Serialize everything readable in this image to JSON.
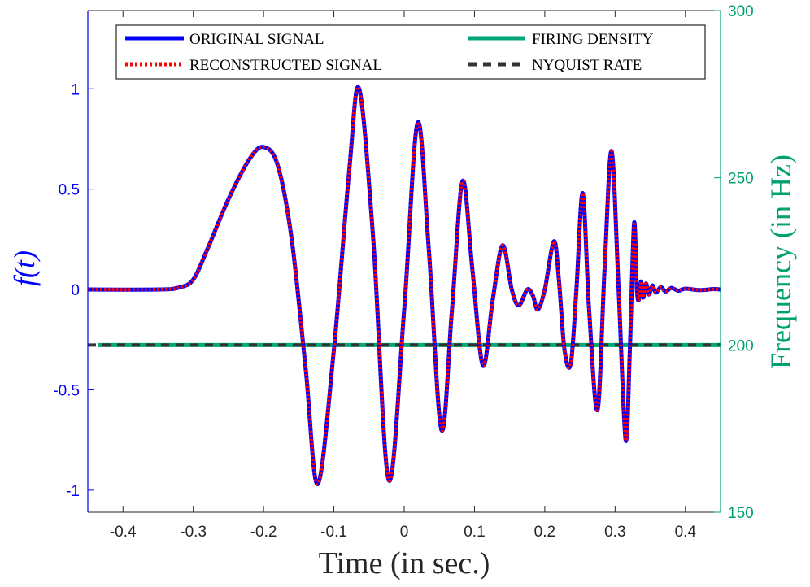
{
  "chart_data": {
    "type": "line",
    "xlabel": "Time (in sec.)",
    "ylabel_left": "f(t)",
    "ylabel_right": "Frequency (in Hz)",
    "xlim": [
      -0.45,
      0.45
    ],
    "ylim_left": [
      -1.11,
      1.39
    ],
    "ylim_right": [
      150,
      300
    ],
    "x_ticks": [
      -0.4,
      -0.3,
      -0.2,
      -0.1,
      0,
      0.1,
      0.2,
      0.3,
      0.4
    ],
    "x_tick_labels": [
      "-0.4",
      "-0.3",
      "-0.2",
      "-0.1",
      "0",
      "0.1",
      "0.2",
      "0.3",
      "0.4"
    ],
    "y_left_ticks": [
      -1,
      -0.5,
      0,
      0.5,
      1
    ],
    "y_left_tick_labels": [
      "-1",
      "-0.5",
      "0",
      "0.5",
      "1"
    ],
    "y_right_ticks": [
      150,
      200,
      250,
      300
    ],
    "y_right_tick_labels": [
      "150",
      "200",
      "250",
      "300"
    ],
    "grid": false,
    "legend_position": "top",
    "colors": {
      "left_axis": "#0000ff",
      "right_axis": "#00a070",
      "original": "#0000ff",
      "reconstructed": "#ff0000",
      "firing": "#00a878",
      "nyquist": "#333333"
    },
    "series": [
      {
        "name": "ORIGINAL SIGNAL",
        "axis": "left",
        "style": "solid",
        "x": [
          -0.45,
          -0.35,
          -0.32,
          -0.3,
          -0.28,
          -0.25,
          -0.22,
          -0.2,
          -0.18,
          -0.16,
          -0.14,
          -0.123,
          -0.1,
          -0.078,
          -0.064,
          -0.044,
          -0.022,
          0.0,
          0.019,
          0.035,
          0.053,
          0.068,
          0.083,
          0.097,
          0.112,
          0.126,
          0.14,
          0.153,
          0.163,
          0.175,
          0.183,
          0.19,
          0.2,
          0.213,
          0.22,
          0.228,
          0.237,
          0.245,
          0.254,
          0.263,
          0.275,
          0.285,
          0.295,
          0.305,
          0.315,
          0.321,
          0.327,
          0.331,
          0.334,
          0.337,
          0.34,
          0.344,
          0.348,
          0.353,
          0.358,
          0.365,
          0.372,
          0.38,
          0.39,
          0.4,
          0.42,
          0.44,
          0.45
        ],
        "y": [
          0.0,
          0.0,
          0.01,
          0.05,
          0.2,
          0.45,
          0.65,
          0.71,
          0.62,
          0.25,
          -0.4,
          -0.97,
          -0.3,
          0.6,
          1.0,
          0.25,
          -0.95,
          -0.1,
          0.83,
          0.2,
          -0.7,
          -0.1,
          0.54,
          0.1,
          -0.38,
          -0.05,
          0.22,
          0.0,
          -0.08,
          0.0,
          -0.03,
          -0.1,
          0.0,
          0.24,
          0.05,
          -0.3,
          -0.37,
          0.0,
          0.48,
          -0.1,
          -0.6,
          0.1,
          0.69,
          0.0,
          -0.75,
          -0.3,
          0.33,
          0.0,
          -0.05,
          0.04,
          -0.04,
          0.03,
          -0.025,
          0.02,
          -0.015,
          0.012,
          -0.01,
          0.008,
          -0.006,
          0.004,
          -0.003,
          0.002,
          0.0
        ]
      },
      {
        "name": "RECONSTRUCTED SIGNAL",
        "axis": "left",
        "style": "dotted",
        "x": [
          -0.45,
          -0.35,
          -0.32,
          -0.3,
          -0.28,
          -0.25,
          -0.22,
          -0.2,
          -0.18,
          -0.16,
          -0.14,
          -0.123,
          -0.1,
          -0.078,
          -0.064,
          -0.044,
          -0.022,
          0.0,
          0.019,
          0.035,
          0.053,
          0.068,
          0.083,
          0.097,
          0.112,
          0.126,
          0.14,
          0.153,
          0.163,
          0.175,
          0.183,
          0.19,
          0.2,
          0.213,
          0.22,
          0.228,
          0.237,
          0.245,
          0.254,
          0.263,
          0.275,
          0.285,
          0.295,
          0.305,
          0.315,
          0.321,
          0.327,
          0.331,
          0.334,
          0.337,
          0.34,
          0.344,
          0.348,
          0.353,
          0.358,
          0.365,
          0.372,
          0.38,
          0.39,
          0.4,
          0.42,
          0.44,
          0.45
        ],
        "y": [
          0.0,
          0.0,
          0.01,
          0.05,
          0.2,
          0.45,
          0.65,
          0.71,
          0.62,
          0.25,
          -0.4,
          -0.97,
          -0.3,
          0.6,
          1.0,
          0.25,
          -0.95,
          -0.1,
          0.83,
          0.2,
          -0.7,
          -0.1,
          0.54,
          0.1,
          -0.38,
          -0.05,
          0.22,
          0.0,
          -0.08,
          0.0,
          -0.03,
          -0.1,
          0.0,
          0.24,
          0.05,
          -0.3,
          -0.37,
          0.0,
          0.48,
          -0.1,
          -0.6,
          0.1,
          0.69,
          0.0,
          -0.75,
          -0.3,
          0.33,
          0.0,
          -0.05,
          0.04,
          -0.04,
          0.03,
          -0.025,
          0.02,
          -0.015,
          0.012,
          -0.01,
          0.008,
          -0.006,
          0.004,
          -0.003,
          0.002,
          0.0
        ]
      },
      {
        "name": "FIRING DENSITY",
        "axis": "right",
        "style": "solid",
        "x": [
          -0.435,
          0.45
        ],
        "y": [
          200,
          200
        ]
      },
      {
        "name": "NYQUIST RATE",
        "axis": "right",
        "style": "dashed",
        "x": [
          -0.45,
          0.45
        ],
        "y": [
          200,
          200
        ]
      }
    ]
  },
  "legend": {
    "original": "ORIGINAL SIGNAL",
    "reconstructed": "RECONSTRUCTED SIGNAL",
    "firing": "FIRING DENSITY",
    "nyquist": "NYQUIST RATE"
  }
}
